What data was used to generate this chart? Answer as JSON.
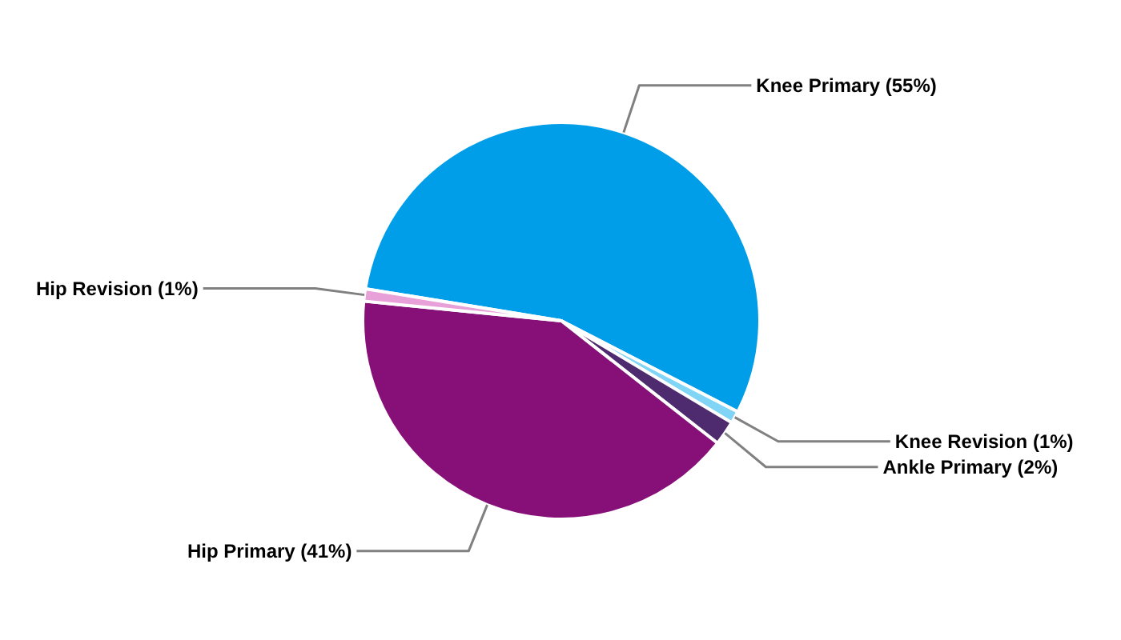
{
  "chart_data": {
    "type": "pie",
    "categories": [
      "Knee Primary",
      "Knee Revision",
      "Ankle Primary",
      "Hip Primary",
      "Hip Revision"
    ],
    "values": [
      55,
      1,
      2,
      41,
      1
    ],
    "colors": [
      "#009ee8",
      "#80d4f6",
      "#4e2a6e",
      "#860f78",
      "#e8a0d8"
    ],
    "value_labels": [
      "(55%)",
      "(1%)",
      "(2%)",
      "(41%)",
      "(1%)"
    ]
  }
}
